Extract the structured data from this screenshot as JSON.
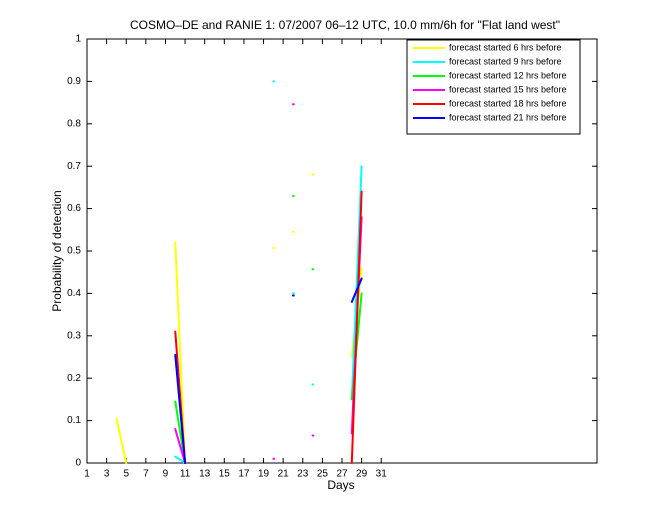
{
  "chart_data": {
    "type": "line",
    "title": "COSMO–DE and RANIE 1: 07/2007 06–12 UTC, 10.0 mm/6h for \"Flat land west\"",
    "x_label": "Days",
    "y_label": "Probability of detection",
    "x": [
      1,
      2,
      3,
      4,
      5,
      6,
      7,
      8,
      9,
      10,
      11,
      12,
      13,
      14,
      15,
      16,
      17,
      18,
      19,
      20,
      21,
      22,
      23,
      24,
      25,
      26,
      27,
      28,
      29,
      30,
      31
    ],
    "series": [
      {
        "name": "forecast started 6 hrs before",
        "color": "#ffff00",
        "values": [
          null,
          null,
          null,
          0.105,
          0,
          null,
          null,
          null,
          null,
          0.52,
          0,
          null,
          null,
          null,
          null,
          null,
          null,
          null,
          null,
          0.507,
          null,
          0.545,
          null,
          0.68,
          null,
          null,
          null,
          0.25,
          0.46,
          null,
          null
        ]
      },
      {
        "name": "forecast started 9 hrs before",
        "color": "#00ffff",
        "values": [
          null,
          null,
          null,
          null,
          null,
          null,
          null,
          null,
          null,
          0.015,
          0,
          null,
          null,
          null,
          null,
          null,
          null,
          null,
          null,
          0.9,
          null,
          0.4,
          null,
          0.185,
          null,
          null,
          null,
          0.15,
          0.7,
          null,
          null
        ]
      },
      {
        "name": "forecast started 12 hrs before",
        "color": "#00ff00",
        "values": [
          null,
          null,
          null,
          null,
          null,
          null,
          null,
          null,
          null,
          0.145,
          0,
          null,
          null,
          null,
          null,
          null,
          null,
          null,
          null,
          null,
          null,
          0.63,
          null,
          0.457,
          null,
          null,
          null,
          0.15,
          0.4,
          null,
          null
        ]
      },
      {
        "name": "forecast started 15 hrs before",
        "color": "#ff00ff",
        "values": [
          null,
          null,
          null,
          null,
          null,
          null,
          null,
          null,
          null,
          0.08,
          0,
          null,
          null,
          null,
          null,
          null,
          null,
          null,
          null,
          0.01,
          null,
          0.846,
          null,
          0.065,
          null,
          null,
          null,
          0.07,
          0.58,
          null,
          null
        ]
      },
      {
        "name": "forecast started 18 hrs before",
        "color": "#ff0000",
        "values": [
          null,
          null,
          null,
          null,
          null,
          null,
          null,
          null,
          null,
          0.31,
          0,
          null,
          null,
          null,
          null,
          null,
          null,
          null,
          null,
          null,
          null,
          null,
          null,
          null,
          null,
          null,
          null,
          0,
          0.64,
          null,
          null
        ]
      },
      {
        "name": "forecast started 21 hrs before",
        "color": "#0000ff",
        "values": [
          null,
          null,
          null,
          null,
          null,
          null,
          null,
          null,
          null,
          0.255,
          0,
          null,
          null,
          null,
          null,
          null,
          null,
          null,
          null,
          null,
          null,
          0.395,
          null,
          null,
          null,
          null,
          null,
          0.38,
          0.435,
          null,
          null
        ]
      }
    ],
    "xlim": [
      1,
      53
    ],
    "ylim": [
      0,
      1
    ],
    "xticks": [
      1,
      3,
      5,
      7,
      9,
      11,
      13,
      15,
      17,
      19,
      21,
      23,
      25,
      27,
      29,
      31
    ],
    "yticks": [
      0,
      0.1,
      0.2,
      0.3,
      0.4,
      0.5,
      0.6,
      0.7,
      0.8,
      0.9,
      1
    ],
    "legend": "upper right"
  }
}
